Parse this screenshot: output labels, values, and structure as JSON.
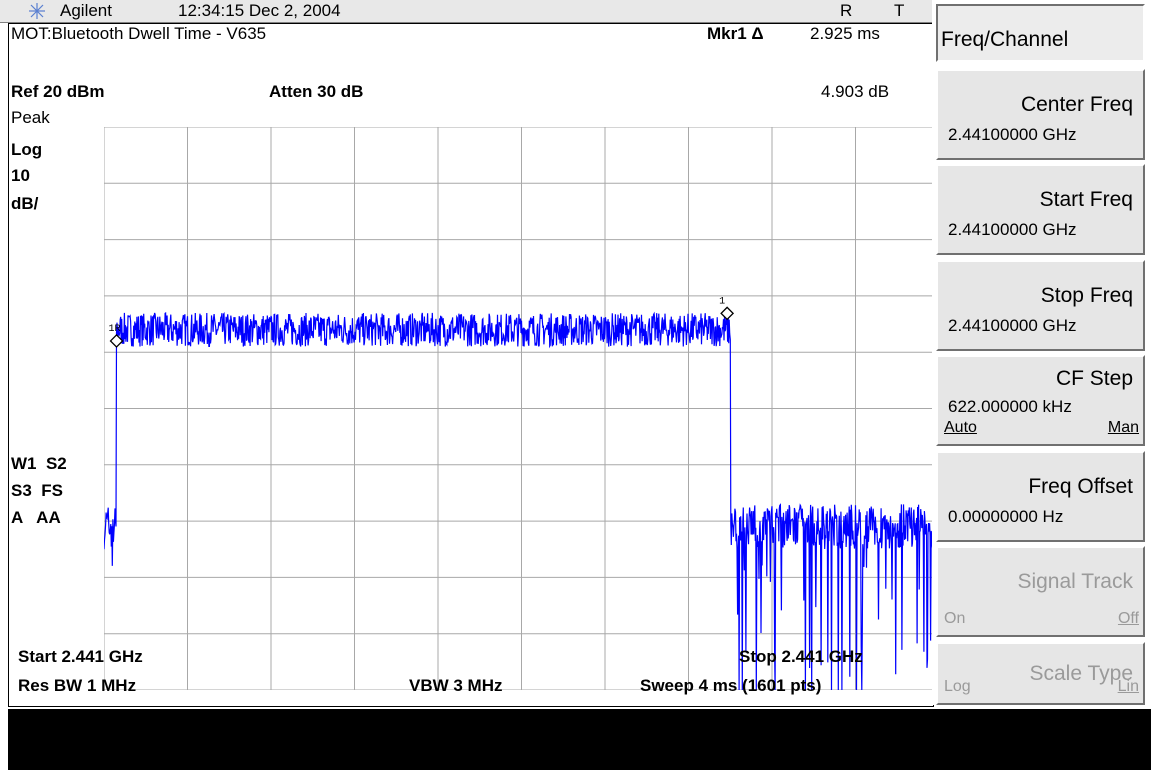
{
  "header": {
    "brand": "Agilent",
    "clock": "12:34:15  Dec 2, 2004",
    "status_r": "R",
    "status_t": "T"
  },
  "screen": {
    "title": "MOT:Bluetooth Dwell Time - V635",
    "marker_label": "Mkr1 Δ",
    "marker_time": "2.925 ms",
    "marker_level": "4.903 dB",
    "ref_level": "Ref 20 dBm",
    "attenuation": "Atten 30 dB",
    "detector": "Peak",
    "scale_type": "Log",
    "scale_value": "10",
    "scale_unit": "dB/",
    "annot_line1": "W1  S2",
    "annot_line2": "S3  FS",
    "annot_line3": "A   AA",
    "start": "Start 2.441 GHz",
    "stop": "Stop 2.441 GHz",
    "rbw": "Res BW 1 MHz",
    "vbw": "VBW 3 MHz",
    "sweep": "Sweep 4 ms (1601 pts)",
    "marker_ref_tag": "1R",
    "marker_tag": "1"
  },
  "softkeys": {
    "menu_title": "Freq/Channel",
    "center": {
      "name": "Center Freq",
      "value": "2.44100000 GHz"
    },
    "start": {
      "name": "Start Freq",
      "value": "2.44100000 GHz"
    },
    "stop": {
      "name": "Stop Freq",
      "value": "2.44100000 GHz"
    },
    "cfstep": {
      "name": "CF Step",
      "value": "622.000000 kHz",
      "opt_left": "Auto",
      "opt_right": "Man"
    },
    "offset": {
      "name": "Freq Offset",
      "value": "0.00000000  Hz"
    },
    "track": {
      "name": "Signal Track",
      "opt_left": "On",
      "opt_right": "Off"
    },
    "scale": {
      "name": "Scale Type",
      "opt_left": "Log",
      "opt_right": "Lin"
    }
  },
  "colors": {
    "trace": "#0000ff",
    "grid": "#a8a8a8",
    "key_face": "#e6e6e6"
  },
  "chart_data": {
    "type": "line",
    "ref_level_dbm": 20,
    "db_per_div": 10,
    "divisions_x": 10,
    "divisions_y": 10,
    "sweep_time_ms": 4,
    "points": 1601,
    "burst_start_ms": 0.06,
    "burst_end_ms": 3.0,
    "burst_level_dbm": -16,
    "noise_floor_dbm": -51,
    "marker_ref_ms": 0.06,
    "marker_delta_ms": 2.925,
    "marker_delta_db": 4.903
  }
}
